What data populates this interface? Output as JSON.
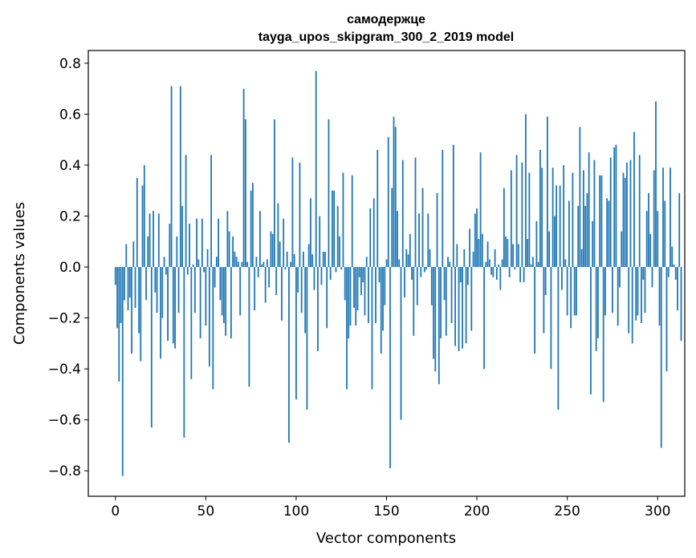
{
  "chart_data": {
    "type": "bar",
    "title": "самодержце",
    "subtitle": "tayga_upos_skipgram_300_2_2019 model",
    "xlabel": "Vector components",
    "ylabel": "Components values",
    "xlim": [
      -15,
      315
    ],
    "ylim": [
      -0.9,
      0.85
    ],
    "xticks": [
      0,
      50,
      100,
      150,
      200,
      250,
      300
    ],
    "xtick_labels": [
      "0",
      "50",
      "100",
      "150",
      "200",
      "250",
      "300"
    ],
    "yticks": [
      -0.8,
      -0.6,
      -0.4,
      -0.2,
      0.0,
      0.2,
      0.4,
      0.6,
      0.8
    ],
    "ytick_labels": [
      "−0.8",
      "−0.6",
      "−0.4",
      "−0.2",
      "0.0",
      "0.2",
      "0.4",
      "0.6",
      "0.8"
    ],
    "bar_color": "#1f77b4",
    "grid": false,
    "values": [
      -0.07,
      -0.24,
      -0.45,
      -0.22,
      -0.82,
      -0.13,
      0.09,
      -0.17,
      -0.12,
      -0.34,
      0.1,
      -0.16,
      0.35,
      -0.26,
      -0.37,
      0.32,
      0.4,
      -0.13,
      0.12,
      0.21,
      -0.63,
      0.22,
      -0.1,
      -0.18,
      0.21,
      -0.36,
      -0.2,
      0.04,
      -0.03,
      -0.29,
      0.17,
      0.71,
      -0.3,
      -0.32,
      0.12,
      -0.18,
      0.71,
      0.24,
      -0.67,
      0.44,
      -0.03,
      0.17,
      -0.44,
      0.01,
      -0.18,
      0.19,
      0.03,
      -0.28,
      0.19,
      -0.02,
      -0.23,
      0.07,
      -0.39,
      0.44,
      -0.48,
      -0.08,
      0.04,
      0.19,
      -0.13,
      -0.19,
      -0.22,
      -0.27,
      0.22,
      0.14,
      -0.28,
      0.12,
      0.06,
      0.04,
      0.02,
      -0.19,
      0.02,
      0.7,
      0.58,
      0.02,
      -0.47,
      0.3,
      0.33,
      -0.17,
      0.04,
      -0.04,
      0.22,
      0.01,
      0.02,
      -0.14,
      0.03,
      -0.08,
      0.14,
      0.13,
      0.58,
      -0.11,
      0.25,
      0.1,
      -0.21,
      0.19,
      -0.01,
      0.06,
      -0.69,
      0.02,
      0.43,
      0.05,
      -0.52,
      -0.1,
      0.41,
      -0.18,
      0.06,
      -0.26,
      -0.56,
      0.09,
      0.27,
      0.05,
      -0.09,
      0.77,
      -0.33,
      0.2,
      -0.07,
      0.06,
      0.06,
      -0.24,
      0.58,
      -0.05,
      0.3,
      0.3,
      -0.02,
      0.24,
      0.12,
      -0.01,
      0.37,
      -0.13,
      -0.48,
      -0.28,
      -0.23,
      0.36,
      -0.16,
      -0.23,
      -0.17,
      -0.04,
      -0.11,
      -0.06,
      -0.19,
      0.04,
      -0.22,
      0.23,
      -0.48,
      0.27,
      -0.22,
      0.46,
      -0.06,
      -0.34,
      -0.25,
      -0.15,
      0.03,
      0.51,
      -0.79,
      0.31,
      0.59,
      0.55,
      0.22,
      0.03,
      -0.6,
      0.42,
      -0.12,
      0.07,
      0.05,
      0.13,
      -0.05,
      -0.27,
      0.43,
      -0.15,
      0.21,
      -0.04,
      0.31,
      -0.02,
      -0.01,
      0.21,
      0.07,
      -0.15,
      -0.36,
      -0.41,
      0.29,
      -0.46,
      -0.28,
      0.46,
      -0.13,
      -0.27,
      0.04,
      0.02,
      -0.22,
      0.48,
      -0.31,
      0.09,
      -0.33,
      -0.06,
      -0.32,
      0.07,
      -0.3,
      -0.07,
      0.15,
      -0.25,
      0.06,
      0.21,
      0.23,
      0.11,
      0.45,
      0.13,
      -0.4,
      0.02,
      0.1,
      0.03,
      -0.03,
      -0.04,
      0.07,
      -0.05,
      0.01,
      -0.09,
      0.03,
      0.31,
      0.12,
      0.11,
      -0.04,
      0.38,
      0.09,
      -0.01,
      0.44,
      0.09,
      -0.06,
      0.41,
      -0.06,
      0.6,
      0.11,
      0.37,
      0.01,
      0.04,
      -0.34,
      0.18,
      0.02,
      0.46,
      0.39,
      -0.26,
      -0.11,
      0.59,
      0.14,
      -0.4,
      0.39,
      0.2,
      0.32,
      -0.56,
      0.32,
      -0.09,
      0.4,
      0.03,
      -0.19,
      0.26,
      -0.24,
      0.37,
      -0.19,
      -0.19,
      0.24,
      0.55,
      0.07,
      0.38,
      0.24,
      0.29,
      0.45,
      -0.5,
      0.18,
      0.42,
      -0.33,
      -0.28,
      0.36,
      0.36,
      -0.53,
      -0.19,
      0.27,
      0.26,
      0.43,
      -0.18,
      0.47,
      0.48,
      -0.23,
      -0.08,
      0.14,
      0.37,
      0.35,
      0.41,
      -0.26,
      0.42,
      -0.3,
      0.53,
      -0.21,
      -0.19,
      0.44,
      -0.22,
      -0.05,
      -0.18,
      0.22,
      0.29,
      0.13,
      -0.08,
      0.38,
      0.65,
      0.22,
      -0.23,
      -0.71,
      0.39,
      0.26,
      -0.41,
      -0.04,
      0.39,
      0.08,
      0.01,
      -0.05,
      -0.17,
      0.29,
      -0.29
    ]
  }
}
